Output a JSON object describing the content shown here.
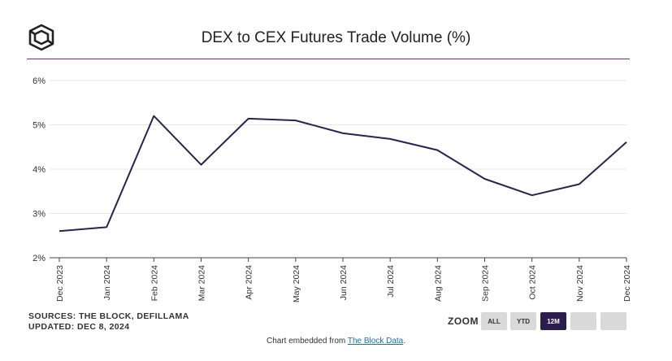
{
  "header": {
    "logo_name": "cube-logo-icon",
    "title": "DEX to CEX Futures Trade Volume (%)"
  },
  "colors": {
    "accent_rule": "#7b2d7b",
    "line": "#2b2252",
    "active_button": "#2b1d4d",
    "button": "#d9d9d9"
  },
  "chart_data": {
    "type": "line",
    "title": "DEX to CEX Futures Trade Volume (%)",
    "xlabel": "",
    "ylabel": "",
    "categories": [
      "Dec 2023",
      "Jan 2024",
      "Feb 2024",
      "Mar 2024",
      "Apr 2024",
      "May 2024",
      "Jun 2024",
      "Jul 2024",
      "Aug 2024",
      "Sep 2024",
      "Oct 2024",
      "Nov 2024",
      "Dec 2024"
    ],
    "series": [
      {
        "name": "DEX to CEX Futures Trade Volume (%)",
        "values": [
          2.6,
          2.69,
          5.2,
          4.1,
          5.14,
          5.1,
          4.81,
          4.68,
          4.43,
          3.78,
          3.41,
          3.66,
          4.61
        ]
      }
    ],
    "ylim": [
      2,
      6
    ],
    "yticks": [
      2,
      3,
      4,
      5,
      6
    ],
    "ytick_labels": [
      "2%",
      "3%",
      "4%",
      "5%",
      "6%"
    ],
    "grid": true,
    "legend": "none"
  },
  "sources": {
    "line1": "SOURCES: THE BLOCK, DEFILLAMA",
    "line2": "UPDATED: DEC 8, 2024"
  },
  "zoom": {
    "label": "ZOOM",
    "buttons": [
      {
        "label": "ALL",
        "active": false
      },
      {
        "label": "YTD",
        "active": false
      },
      {
        "label": "12M",
        "active": true
      },
      {
        "label": "",
        "active": false
      },
      {
        "label": "",
        "active": false
      }
    ]
  },
  "footer": {
    "text": "Chart embedded from ",
    "link_text": "The Block Data",
    "suffix": "."
  }
}
